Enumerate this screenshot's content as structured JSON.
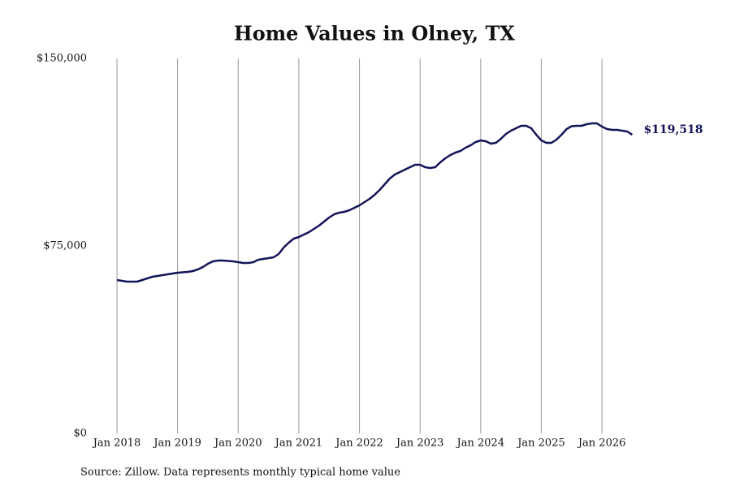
{
  "chart_data": {
    "type": "line",
    "title": "Home Values in Olney, TX",
    "source": "Source: Zillow. Data represents monthly typical home value",
    "x": [
      "2018-01",
      "2018-02",
      "2018-03",
      "2018-04",
      "2018-05",
      "2018-06",
      "2018-07",
      "2018-08",
      "2018-09",
      "2018-10",
      "2018-11",
      "2018-12",
      "2019-01",
      "2019-02",
      "2019-03",
      "2019-04",
      "2019-05",
      "2019-06",
      "2019-07",
      "2019-08",
      "2019-09",
      "2019-10",
      "2019-11",
      "2019-12",
      "2020-01",
      "2020-02",
      "2020-03",
      "2020-04",
      "2020-05",
      "2020-06",
      "2020-07",
      "2020-08",
      "2020-09",
      "2020-10",
      "2020-11",
      "2020-12",
      "2021-01",
      "2021-02",
      "2021-03",
      "2021-04",
      "2021-05",
      "2021-06",
      "2021-07",
      "2021-08",
      "2021-09",
      "2021-10",
      "2021-11",
      "2021-12",
      "2022-01",
      "2022-02",
      "2022-03",
      "2022-04",
      "2022-05",
      "2022-06",
      "2022-07",
      "2022-08",
      "2022-09",
      "2022-10",
      "2022-11",
      "2022-12",
      "2023-01",
      "2023-02",
      "2023-03",
      "2023-04",
      "2023-05",
      "2023-06",
      "2023-07",
      "2023-08",
      "2023-09",
      "2023-10",
      "2023-11",
      "2023-12",
      "2024-01",
      "2024-02",
      "2024-03",
      "2024-04",
      "2024-05",
      "2024-06",
      "2024-07",
      "2024-08",
      "2024-09",
      "2024-10",
      "2024-11",
      "2024-12",
      "2025-01",
      "2025-02",
      "2025-03",
      "2025-04",
      "2025-05",
      "2025-06",
      "2025-07",
      "2025-08",
      "2025-09",
      "2025-10",
      "2025-11",
      "2025-12",
      "2026-01",
      "2026-02",
      "2026-03",
      "2026-04",
      "2026-05",
      "2026-06",
      "2026-07"
    ],
    "series": [
      {
        "name": "Home Value",
        "color": "#14145a",
        "values": [
          61364,
          61039,
          60714,
          60714,
          60714,
          61364,
          62013,
          62662,
          62987,
          63312,
          63636,
          63961,
          64286,
          64448,
          64610,
          64935,
          65584,
          66558,
          67857,
          68831,
          69156,
          69156,
          69000,
          68831,
          68506,
          68182,
          68182,
          68506,
          69481,
          69805,
          70130,
          70455,
          71753,
          74351,
          76299,
          77922,
          78571,
          79545,
          80519,
          81818,
          83117,
          84740,
          86364,
          87662,
          88312,
          88636,
          89286,
          90260,
          91234,
          92532,
          93831,
          95455,
          97403,
          99675,
          101948,
          103571,
          104545,
          105519,
          106494,
          107468,
          107468,
          106494,
          106169,
          106494,
          108442,
          110065,
          111364,
          112338,
          112987,
          114286,
          115260,
          116558,
          117208,
          116883,
          115909,
          116234,
          117857,
          119805,
          121104,
          122078,
          123052,
          123052,
          122078,
          119481,
          117208,
          116234,
          116234,
          117532,
          119481,
          121753,
          122890,
          123052,
          123052,
          123701,
          124026,
          124026,
          122727,
          121753,
          121429,
          121429,
          121104,
          120779,
          119518
        ],
        "value_labels": [
          null,
          null,
          null,
          null,
          null,
          null,
          null,
          null,
          null,
          null,
          null,
          null,
          null,
          null,
          null,
          null,
          null,
          null,
          null,
          null,
          null,
          null,
          null,
          null,
          null,
          null,
          null,
          null,
          null,
          null,
          null,
          null,
          null,
          null,
          null,
          null,
          null,
          null,
          null,
          null,
          null,
          null,
          null,
          null,
          null,
          null,
          null,
          null,
          null,
          null,
          null,
          null,
          null,
          null,
          null,
          null,
          null,
          null,
          null,
          null,
          null,
          null,
          null,
          null,
          null,
          null,
          null,
          null,
          null,
          null,
          null,
          null,
          null,
          null,
          null,
          null,
          null,
          null,
          null,
          null,
          null,
          null,
          null,
          null,
          null,
          null,
          null,
          null,
          null,
          null,
          null,
          null,
          null,
          null,
          null,
          null,
          null,
          null,
          null,
          null,
          null,
          null,
          "$119,518"
        ]
      }
    ],
    "ylim": [
      0,
      150000
    ],
    "yticks": [
      {
        "value": 0,
        "label": "$0"
      },
      {
        "value": 75000,
        "label": "$75,000"
      },
      {
        "value": 150000,
        "label": "$150,000"
      }
    ],
    "xticks": [
      {
        "value": "2018-01",
        "label": "Jan 2018"
      },
      {
        "value": "2019-01",
        "label": "Jan 2019"
      },
      {
        "value": "2020-01",
        "label": "Jan 2020"
      },
      {
        "value": "2021-01",
        "label": "Jan 2021"
      },
      {
        "value": "2022-01",
        "label": "Jan 2022"
      },
      {
        "value": "2023-01",
        "label": "Jan 2023"
      },
      {
        "value": "2024-01",
        "label": "Jan 2024"
      },
      {
        "value": "2025-01",
        "label": "Jan 2025"
      },
      {
        "value": "2026-01",
        "label": "Jan 2026"
      }
    ],
    "xgrid": true
  }
}
